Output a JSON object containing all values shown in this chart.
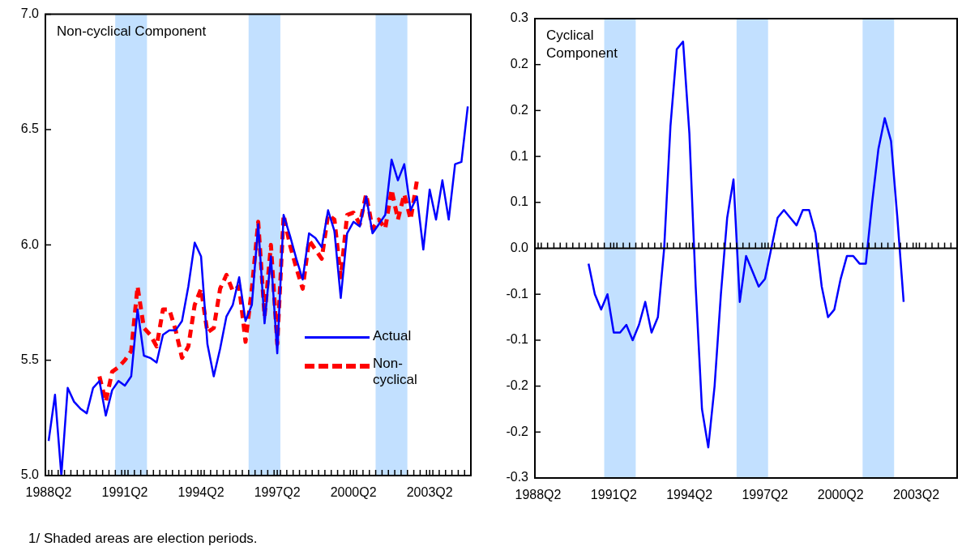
{
  "chart_data": [
    {
      "type": "line",
      "title": "Non-cyclical Component",
      "x": [
        "1988-04",
        "1988-07",
        "1988-10",
        "1989-01",
        "1989-04",
        "1989-07",
        "1989-10",
        "1990-01",
        "1990-04",
        "1990-07",
        "1990-10",
        "1991-01",
        "1991-04",
        "1991-07",
        "1991-10",
        "1992-01",
        "1992-04",
        "1992-07",
        "1992-10",
        "1993-01",
        "1993-04",
        "1993-07",
        "1993-10",
        "1994-01",
        "1994-04",
        "1994-07",
        "1994-10",
        "1995-01",
        "1995-04",
        "1995-07",
        "1995-10",
        "1996-01",
        "1996-04",
        "1996-07",
        "1996-10",
        "1997-01",
        "1997-04",
        "1997-07",
        "1997-10",
        "1998-01",
        "1998-04",
        "1998-07",
        "1998-10",
        "1999-01",
        "1999-04",
        "1999-07",
        "1999-10",
        "2000-01",
        "2000-04",
        "2000-07",
        "2000-10",
        "2001-01",
        "2001-04",
        "2001-07",
        "2001-10",
        "2002-01",
        "2002-04",
        "2002-07",
        "2002-10",
        "2003-01",
        "2003-04",
        "2003-07",
        "2003-10",
        "2004-01",
        "2004-04",
        "2004-07",
        "2004-10"
      ],
      "series": [
        {
          "name": "Actual",
          "color": "#0000ff",
          "line_style": "solid",
          "values": [
            5.15,
            5.35,
            5.0,
            5.38,
            5.32,
            5.29,
            5.27,
            5.38,
            5.41,
            5.26,
            5.37,
            5.41,
            5.39,
            5.43,
            5.72,
            5.52,
            5.51,
            5.49,
            5.61,
            5.63,
            5.63,
            5.67,
            5.82,
            6.01,
            5.95,
            5.57,
            5.43,
            5.55,
            5.69,
            5.74,
            5.86,
            5.67,
            5.74,
            6.09,
            5.66,
            5.95,
            5.53,
            6.13,
            6.04,
            5.94,
            5.85,
            6.05,
            6.03,
            5.99,
            6.15,
            6.06,
            5.77,
            6.05,
            6.1,
            6.08,
            6.21,
            6.05,
            6.09,
            6.13,
            6.37,
            6.28,
            6.35,
            6.15,
            6.21,
            5.98,
            6.24,
            6.11,
            6.28,
            6.11,
            6.35,
            6.36,
            6.6
          ]
        },
        {
          "name": "Non-cyclical",
          "color": "#ff0000",
          "line_style": "dashed",
          "values": [
            null,
            null,
            null,
            null,
            null,
            null,
            null,
            null,
            5.43,
            5.32,
            5.45,
            5.47,
            5.5,
            5.54,
            5.82,
            5.64,
            5.61,
            5.56,
            5.72,
            5.72,
            5.63,
            5.51,
            5.56,
            5.74,
            5.81,
            5.62,
            5.64,
            5.81,
            5.87,
            5.8,
            5.82,
            5.58,
            5.81,
            6.1,
            5.69,
            6.0,
            5.57,
            6.13,
            6.0,
            5.9,
            5.81,
            6.02,
            5.98,
            5.94,
            6.13,
            6.11,
            5.86,
            6.13,
            6.14,
            6.09,
            6.22,
            6.07,
            6.11,
            6.07,
            6.24,
            6.11,
            6.22,
            6.11,
            6.28,
            null,
            null,
            null,
            null,
            null,
            null,
            null,
            null
          ]
        }
      ],
      "xlim": [
        "1988-02-15",
        "2004-11-15"
      ],
      "xticks": [
        {
          "value": "1988-04",
          "label": "1988Q2"
        },
        {
          "value": "1991-04",
          "label": "1991Q2"
        },
        {
          "value": "1994-04",
          "label": "1994Q2"
        },
        {
          "value": "1997-04",
          "label": "1997Q2"
        },
        {
          "value": "2000-04",
          "label": "2000Q2"
        },
        {
          "value": "2003-04",
          "label": "2003Q2"
        }
      ],
      "ylim": [
        5,
        7
      ],
      "yticks": [
        {
          "value": 5,
          "label": "5.0"
        },
        {
          "value": 5.5,
          "label": "5.5"
        },
        {
          "value": 6,
          "label": "6.0"
        },
        {
          "value": 6.5,
          "label": "6.5"
        },
        {
          "value": 7,
          "label": "7.0"
        }
      ],
      "bands": [
        {
          "axis": "x",
          "from": "1990-11-15",
          "to": "1992-02-15",
          "color": "#c2e0ff"
        },
        {
          "axis": "x",
          "from": "1996-02-15",
          "to": "1997-05-15",
          "color": "#c2e0ff"
        },
        {
          "axis": "x",
          "from": "2001-02-15",
          "to": "2002-05-15",
          "color": "#c2e0ff"
        }
      ],
      "legend": "right",
      "annotations": [
        "1/ Shaded areas are election periods."
      ]
    },
    {
      "type": "line",
      "title": "Cyclical Component",
      "series": [
        {
          "color": "#0000ff",
          "line_style": "solid",
          "x": [
            "1990-04",
            "1990-07",
            "1990-10",
            "1991-01",
            "1991-04",
            "1991-07",
            "1991-10",
            "1992-01",
            "1992-04",
            "1992-07",
            "1992-10",
            "1993-01",
            "1993-04",
            "1993-07",
            "1993-10",
            "1994-01",
            "1994-04",
            "1994-07",
            "1994-10",
            "1995-01",
            "1995-04",
            "1995-07",
            "1995-10",
            "1996-01",
            "1996-04",
            "1996-07",
            "1996-10",
            "1997-01",
            "1997-04",
            "1997-07",
            "1997-10",
            "1998-01",
            "1998-04",
            "1998-07",
            "1998-10",
            "1999-01",
            "1999-04",
            "1999-07",
            "1999-10",
            "2000-01",
            "2000-04",
            "2000-07",
            "2000-10",
            "2001-01",
            "2001-04",
            "2001-07",
            "2001-10",
            "2002-01",
            "2002-04",
            "2002-07",
            "2002-10"
          ],
          "values": [
            -0.02,
            -0.06,
            -0.08,
            -0.06,
            -0.11,
            -0.11,
            -0.1,
            -0.12,
            -0.1,
            -0.07,
            -0.11,
            -0.09,
            0.0,
            0.16,
            0.26,
            0.27,
            0.15,
            -0.05,
            -0.21,
            -0.26,
            -0.18,
            -0.06,
            0.04,
            0.09,
            -0.07,
            -0.01,
            -0.03,
            -0.05,
            -0.04,
            0.0,
            0.04,
            0.05,
            0.04,
            0.03,
            0.05,
            0.05,
            0.02,
            -0.05,
            -0.09,
            -0.08,
            -0.04,
            -0.01,
            -0.01,
            -0.02,
            -0.02,
            0.06,
            0.13,
            0.17,
            0.14,
            0.04,
            -0.07
          ]
        }
      ],
      "xlim": [
        "1988-02-15",
        "2004-11-15"
      ],
      "xticks": [
        {
          "value": "1988-04",
          "label": "1988Q2"
        },
        {
          "value": "1991-04",
          "label": "1991Q2"
        },
        {
          "value": "1994-04",
          "label": "1994Q2"
        },
        {
          "value": "1997-04",
          "label": "1997Q2"
        },
        {
          "value": "2000-04",
          "label": "2000Q2"
        },
        {
          "value": "2003-04",
          "label": "2003Q2"
        }
      ],
      "ylim": [
        -0.3,
        0.3
      ],
      "yticks": [
        {
          "value": -0.3,
          "label": "-0.3"
        },
        {
          "value": -0.24,
          "label": "-0.2"
        },
        {
          "value": -0.18,
          "label": "-0.2"
        },
        {
          "value": -0.12,
          "label": "-0.1"
        },
        {
          "value": -0.06,
          "label": "-0.1"
        },
        {
          "value": 0,
          "label": "0.0"
        },
        {
          "value": 0.06,
          "label": "0.1"
        },
        {
          "value": 0.12,
          "label": "0.1"
        },
        {
          "value": 0.18,
          "label": "0.2"
        },
        {
          "value": 0.24,
          "label": "0.2"
        },
        {
          "value": 0.3,
          "label": "0.3"
        }
      ],
      "bands": [
        {
          "axis": "x",
          "from": "1990-11-15",
          "to": "1992-02-15",
          "color": "#c2e0ff"
        },
        {
          "axis": "x",
          "from": "1996-02-15",
          "to": "1997-05-15",
          "color": "#c2e0ff"
        },
        {
          "axis": "x",
          "from": "2001-02-15",
          "to": "2002-05-15",
          "color": "#c2e0ff"
        }
      ],
      "ref_lines": [
        {
          "axis": "y",
          "value": 0,
          "color": "#000000"
        }
      ]
    }
  ]
}
